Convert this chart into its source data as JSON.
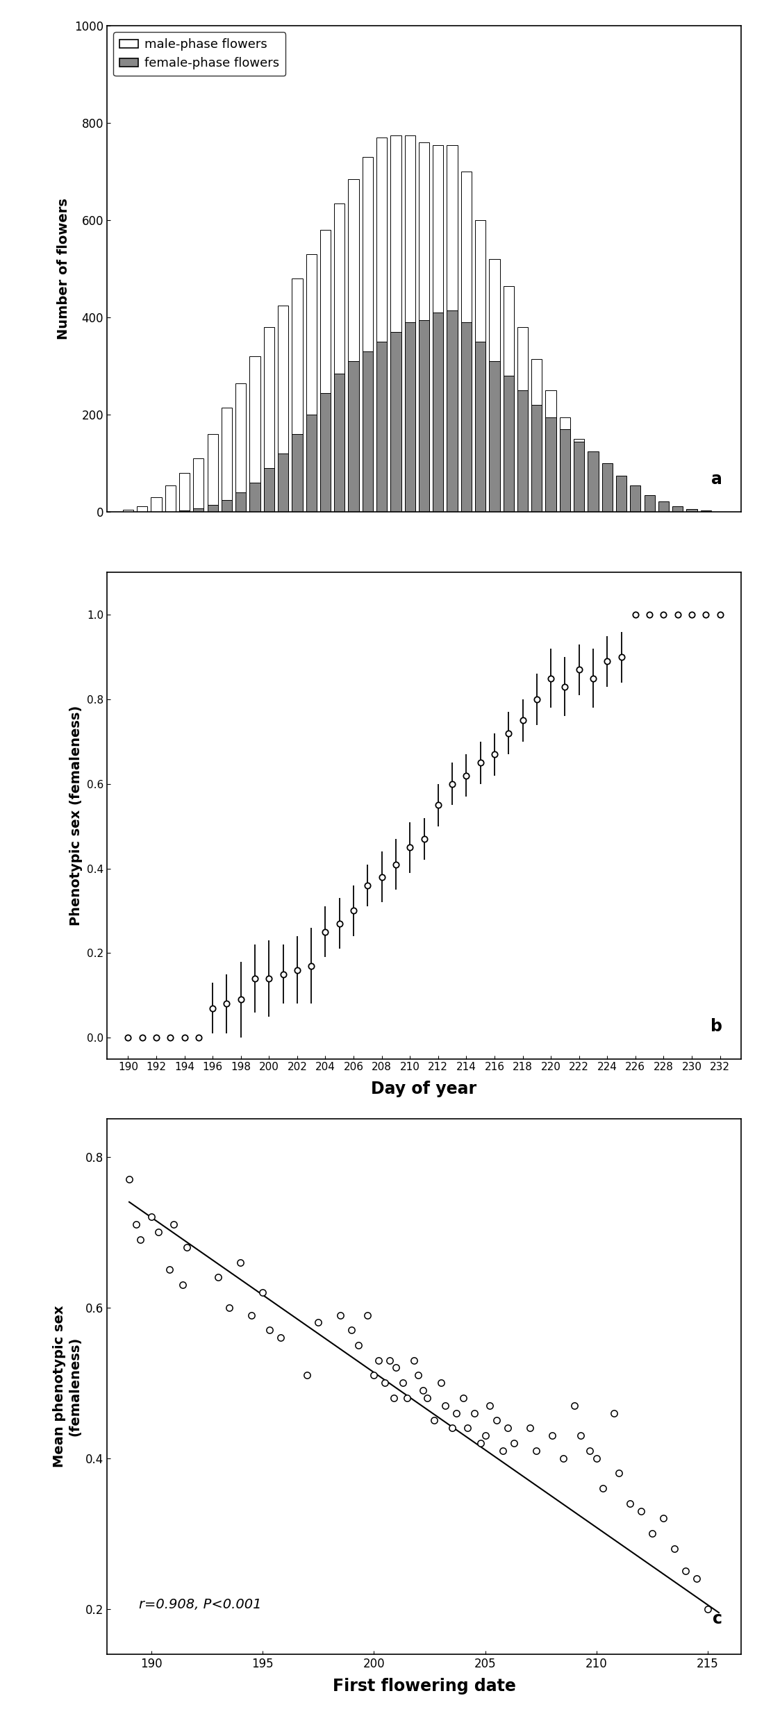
{
  "panel_a": {
    "days": [
      190,
      191,
      192,
      193,
      194,
      195,
      196,
      197,
      198,
      199,
      200,
      201,
      202,
      203,
      204,
      205,
      206,
      207,
      208,
      209,
      210,
      211,
      212,
      213,
      214,
      215,
      216,
      217,
      218,
      219,
      220,
      221,
      222,
      223,
      224,
      225,
      226,
      227,
      228,
      229,
      230,
      231,
      232
    ],
    "male_total": [
      5,
      12,
      30,
      55,
      80,
      110,
      160,
      215,
      265,
      320,
      380,
      425,
      480,
      530,
      580,
      635,
      685,
      730,
      770,
      775,
      775,
      760,
      755,
      755,
      700,
      600,
      520,
      465,
      380,
      315,
      250,
      195,
      150,
      110,
      80,
      55,
      35,
      20,
      12,
      7,
      4,
      2,
      1
    ],
    "female_total": [
      0,
      0,
      0,
      0,
      3,
      8,
      15,
      25,
      40,
      60,
      90,
      120,
      160,
      200,
      245,
      285,
      310,
      330,
      350,
      370,
      390,
      395,
      410,
      415,
      390,
      350,
      310,
      280,
      250,
      220,
      195,
      170,
      145,
      125,
      100,
      75,
      55,
      35,
      22,
      12,
      6,
      3,
      1
    ],
    "ylabel": "Number of flowers",
    "ylim": [
      0,
      1000
    ],
    "yticks": [
      0,
      200,
      400,
      600,
      800,
      1000
    ],
    "xlim": [
      188.5,
      233.5
    ],
    "label_a": "a",
    "legend_male": "male-phase flowers",
    "legend_female": "female-phase flowers",
    "bar_color_male": "#ffffff",
    "bar_color_female": "#888888",
    "bar_edgecolor": "#000000"
  },
  "panel_b": {
    "days": [
      190,
      191,
      192,
      193,
      194,
      195,
      196,
      197,
      198,
      199,
      200,
      201,
      202,
      203,
      204,
      205,
      206,
      207,
      208,
      209,
      210,
      211,
      212,
      213,
      214,
      215,
      216,
      217,
      218,
      219,
      220,
      221,
      222,
      223,
      224,
      225,
      226,
      227,
      228,
      229,
      230,
      231,
      232
    ],
    "mean": [
      0.0,
      0.0,
      0.0,
      0.0,
      0.0,
      0.0,
      0.07,
      0.08,
      0.09,
      0.14,
      0.14,
      0.15,
      0.16,
      0.17,
      0.25,
      0.27,
      0.3,
      0.36,
      0.38,
      0.41,
      0.45,
      0.47,
      0.55,
      0.6,
      0.62,
      0.65,
      0.67,
      0.72,
      0.75,
      0.8,
      0.85,
      0.83,
      0.87,
      0.85,
      0.89,
      0.9,
      1.0,
      1.0,
      1.0,
      1.0,
      1.0,
      1.0,
      1.0
    ],
    "err": [
      0.0,
      0.0,
      0.0,
      0.0,
      0.0,
      0.0,
      0.06,
      0.07,
      0.09,
      0.08,
      0.09,
      0.07,
      0.08,
      0.09,
      0.06,
      0.06,
      0.06,
      0.05,
      0.06,
      0.06,
      0.06,
      0.05,
      0.05,
      0.05,
      0.05,
      0.05,
      0.05,
      0.05,
      0.05,
      0.06,
      0.07,
      0.07,
      0.06,
      0.07,
      0.06,
      0.06,
      0.0,
      0.0,
      0.0,
      0.0,
      0.0,
      0.0,
      0.0
    ],
    "ylabel": "Phenotypic sex (femaleness)",
    "ylim": [
      -0.05,
      1.1
    ],
    "yticks": [
      0.0,
      0.2,
      0.4,
      0.6,
      0.8,
      1.0
    ],
    "xlim": [
      188.5,
      233.5
    ],
    "xticks": [
      190,
      192,
      194,
      196,
      198,
      200,
      202,
      204,
      206,
      208,
      210,
      212,
      214,
      216,
      218,
      220,
      222,
      224,
      226,
      228,
      230,
      232
    ],
    "xlabel": "Day of year",
    "label_b": "b"
  },
  "panel_c": {
    "x": [
      189.0,
      189.3,
      189.5,
      190.0,
      190.3,
      190.8,
      191.0,
      191.4,
      191.6,
      193.0,
      193.5,
      194.0,
      194.5,
      195.0,
      195.3,
      195.8,
      197.0,
      197.5,
      198.5,
      199.0,
      199.3,
      199.7,
      200.0,
      200.2,
      200.5,
      200.7,
      200.9,
      201.0,
      201.3,
      201.5,
      201.8,
      202.0,
      202.2,
      202.4,
      202.7,
      203.0,
      203.2,
      203.5,
      203.7,
      204.0,
      204.2,
      204.5,
      204.8,
      205.0,
      205.2,
      205.5,
      205.8,
      206.0,
      206.3,
      207.0,
      207.3,
      208.0,
      208.5,
      209.0,
      209.3,
      209.7,
      210.0,
      210.3,
      210.8,
      211.0,
      211.5,
      212.0,
      212.5,
      213.0,
      213.5,
      214.0,
      214.5,
      215.0
    ],
    "y": [
      0.77,
      0.71,
      0.69,
      0.72,
      0.7,
      0.65,
      0.71,
      0.63,
      0.68,
      0.64,
      0.6,
      0.66,
      0.59,
      0.62,
      0.57,
      0.56,
      0.51,
      0.58,
      0.59,
      0.57,
      0.55,
      0.59,
      0.51,
      0.53,
      0.5,
      0.53,
      0.48,
      0.52,
      0.5,
      0.48,
      0.53,
      0.51,
      0.49,
      0.48,
      0.45,
      0.5,
      0.47,
      0.44,
      0.46,
      0.48,
      0.44,
      0.46,
      0.42,
      0.43,
      0.47,
      0.45,
      0.41,
      0.44,
      0.42,
      0.44,
      0.41,
      0.43,
      0.4,
      0.47,
      0.43,
      0.41,
      0.4,
      0.36,
      0.46,
      0.38,
      0.34,
      0.33,
      0.3,
      0.32,
      0.28,
      0.25,
      0.24,
      0.2
    ],
    "reg_x0": 189.0,
    "reg_x1": 215.5,
    "reg_y0": 0.74,
    "reg_y1": 0.195,
    "annotation": "r=0.908, P<0.001",
    "xlabel": "First flowering date",
    "ylabel": "Mean phenotypic sex\n(femaleness)",
    "xlim": [
      188.0,
      216.5
    ],
    "ylim": [
      0.14,
      0.85
    ],
    "yticks": [
      0.2,
      0.4,
      0.6,
      0.8
    ],
    "xticks": [
      190,
      195,
      200,
      205,
      210,
      215
    ],
    "label_c": "c"
  }
}
